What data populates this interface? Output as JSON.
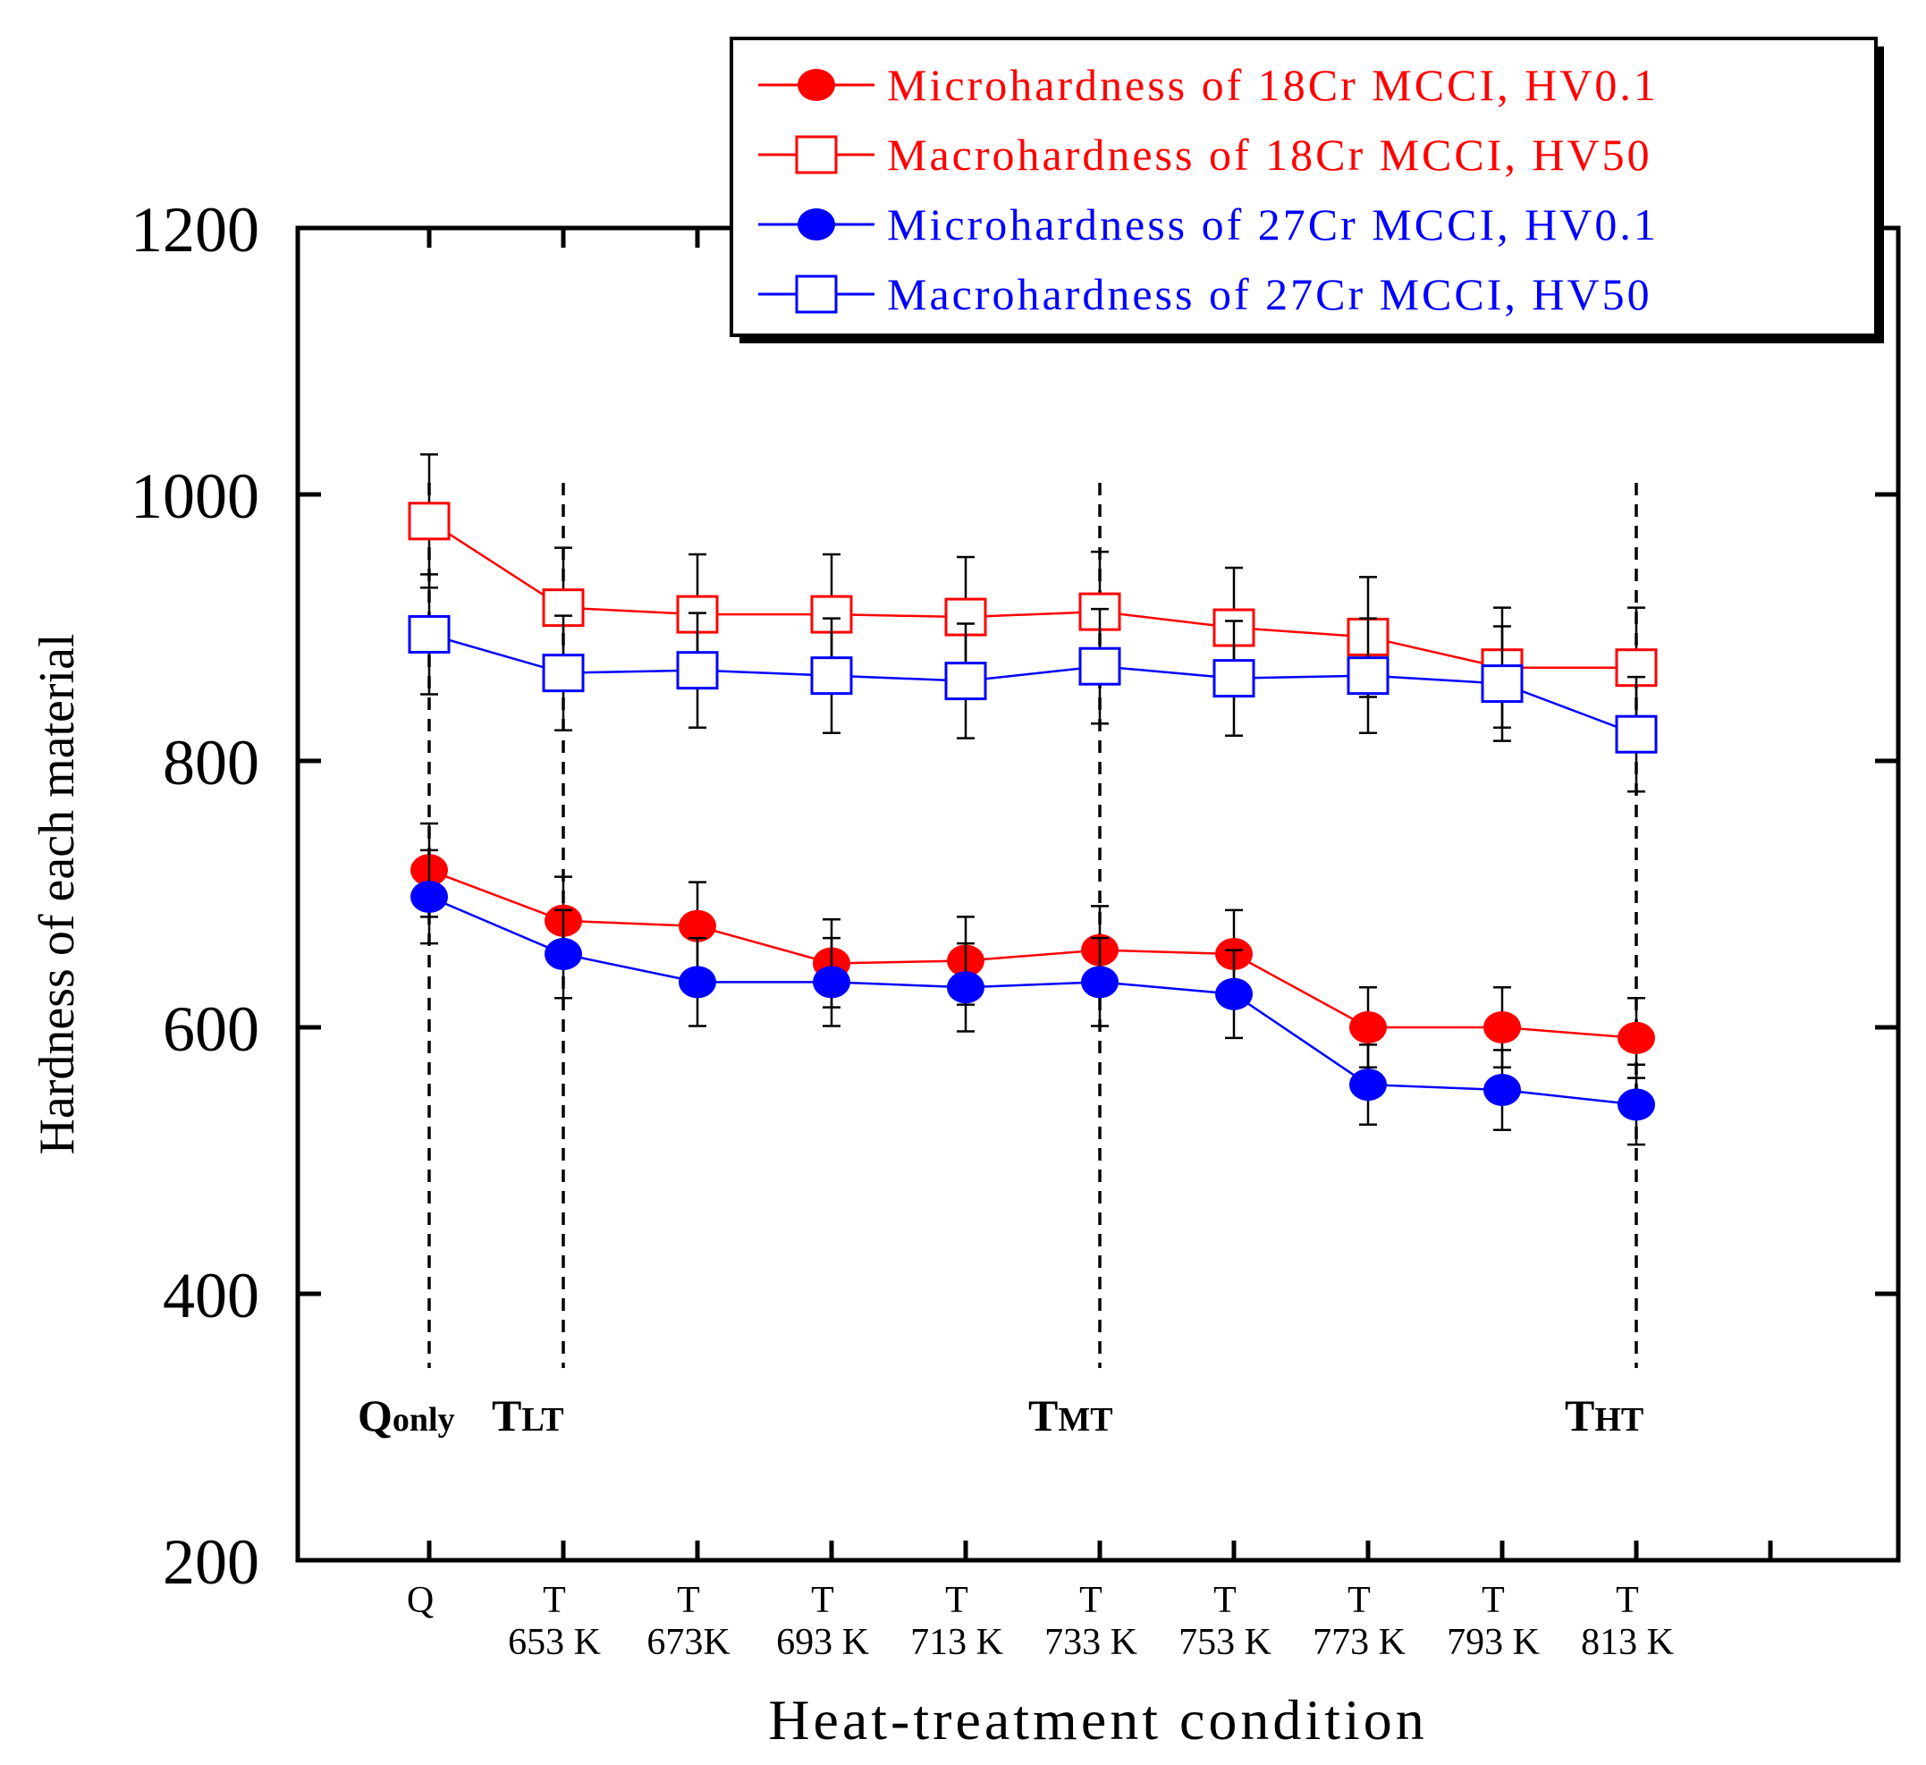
{
  "chart_data": {
    "type": "line",
    "ylabel": "Hardness of each material",
    "xlabel": "Heat-treatment condition",
    "ylim": [
      200,
      1200
    ],
    "yticks": [
      200,
      400,
      600,
      800,
      1000,
      1200
    ],
    "categories": [
      {
        "top": "Q",
        "bottom": ""
      },
      {
        "top": "T",
        "bottom": "653 K"
      },
      {
        "top": "T",
        "bottom": "673K"
      },
      {
        "top": "T",
        "bottom": "693 K"
      },
      {
        "top": "T",
        "bottom": "713 K"
      },
      {
        "top": "T",
        "bottom": "733 K"
      },
      {
        "top": "T",
        "bottom": "753 K"
      },
      {
        "top": "T",
        "bottom": "773 K"
      },
      {
        "top": "T",
        "bottom": "793 K"
      },
      {
        "top": "T",
        "bottom": "813 K"
      }
    ],
    "series": [
      {
        "name": "Microhardness of 18Cr MCCI, HV0.1",
        "color": "#ff0000",
        "marker": "filled-circle",
        "values": [
          718,
          680,
          676,
          648,
          650,
          658,
          655,
          600,
          600,
          592
        ],
        "errors": [
          35,
          33,
          33,
          33,
          33,
          33,
          33,
          30,
          30,
          30
        ]
      },
      {
        "name": "Macrohardness of 18Cr MCCI, HV50",
        "color": "#ff0000",
        "marker": "open-square",
        "values": [
          980,
          915,
          910,
          910,
          908,
          912,
          900,
          893,
          870,
          870
        ],
        "errors": [
          50,
          45,
          45,
          45,
          45,
          45,
          45,
          45,
          45,
          45
        ]
      },
      {
        "name": "Microhardness of 27Cr MCCI, HV0.1",
        "color": "#0000ff",
        "marker": "filled-circle",
        "values": [
          698,
          655,
          634,
          634,
          630,
          634,
          625,
          557,
          553,
          542
        ],
        "errors": [
          35,
          33,
          33,
          33,
          33,
          33,
          33,
          30,
          30,
          30
        ]
      },
      {
        "name": "Macrohardness of 27Cr MCCI, HV50",
        "color": "#0000ff",
        "marker": "open-square",
        "values": [
          895,
          866,
          868,
          864,
          860,
          871,
          862,
          864,
          858,
          820
        ],
        "errors": [
          45,
          43,
          43,
          43,
          43,
          43,
          43,
          43,
          43,
          43
        ]
      }
    ],
    "annotations": [
      {
        "category_index": 0,
        "main": "Q",
        "sub": "only"
      },
      {
        "category_index": 1,
        "main": "T",
        "sub": "LT"
      },
      {
        "category_index": 5,
        "main": "T",
        "sub": "MT"
      },
      {
        "category_index": 9,
        "main": "T",
        "sub": "HT"
      }
    ],
    "legend_position": "top-right"
  }
}
